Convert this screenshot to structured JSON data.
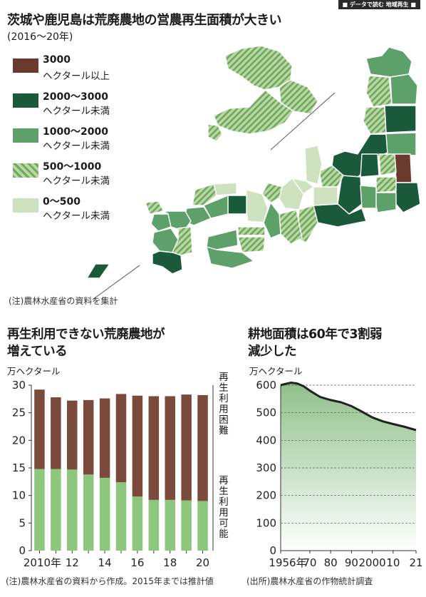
{
  "header": {
    "tag": "■ データで読む 地域再生 ■"
  },
  "map": {
    "title": "茨城や鹿児島は荒廃農地の営農再生面積が大きい",
    "subtitle": "(2016〜20年)",
    "note": "(注)農林水産省の資料を集計",
    "colors": {
      "c3000": "#6b3a2e",
      "c2000": "#1a5a3a",
      "c1000": "#5ea06a",
      "c500_base": "#b9d8a4",
      "c500_stripe": "#6fa85e",
      "c0": "#cfe2bf"
    },
    "legend": [
      {
        "range": "3000",
        "unit": "ヘクタール以上",
        "swatch": "c3000"
      },
      {
        "range": "2000〜3000",
        "unit": "ヘクタール未満",
        "swatch": "c2000"
      },
      {
        "range": "1000〜2000",
        "unit": "ヘクタール未満",
        "swatch": "c1000"
      },
      {
        "range": "500〜1000",
        "unit": "ヘクタール未満",
        "swatch": "c500"
      },
      {
        "range": "0〜500",
        "unit": "ヘクタール未満",
        "swatch": "c0"
      }
    ]
  },
  "chart_data": [
    {
      "type": "bar",
      "stacked": true,
      "title_lines": [
        "再生利用できない荒廃農地が",
        "増えている"
      ],
      "ylabel": "万ヘクタール",
      "ylim": [
        0,
        30
      ],
      "yticks": [
        0,
        5,
        10,
        15,
        20,
        25,
        30
      ],
      "categories": [
        "2010",
        "2011",
        "2012",
        "2013",
        "2014",
        "2015",
        "2016",
        "2017",
        "2018",
        "2019",
        "2020"
      ],
      "xtick_labels": [
        "2010年",
        "",
        "12",
        "",
        "14",
        "",
        "16",
        "",
        "18",
        "",
        "20"
      ],
      "series": [
        {
          "name": "再生利用可能",
          "color": "#8dc77e",
          "values": [
            14.8,
            14.8,
            14.7,
            13.8,
            13.2,
            12.4,
            9.8,
            9.2,
            9.2,
            9.1,
            9.0
          ]
        },
        {
          "name": "再生利用困難",
          "color": "#7a4a3c",
          "values": [
            14.4,
            13.0,
            12.5,
            13.5,
            14.4,
            16.0,
            18.3,
            18.8,
            18.8,
            19.2,
            19.2
          ]
        }
      ],
      "grid": false,
      "note": "(注)農林水産省の資料から作成。2015年までは推計値"
    },
    {
      "type": "area",
      "title_lines": [
        "耕地面積は60年で3割弱",
        "減少した"
      ],
      "ylabel": "万ヘクタール",
      "ylim": [
        0,
        600
      ],
      "yticks": [
        0,
        100,
        200,
        300,
        400,
        500,
        600
      ],
      "x": [
        1956,
        1958,
        1961,
        1964,
        1967,
        1970,
        1975,
        1980,
        1985,
        1990,
        1995,
        2000,
        2005,
        2010,
        2015,
        2021
      ],
      "values": [
        600,
        604,
        609,
        606,
        596,
        580,
        557,
        546,
        538,
        524,
        504,
        483,
        469,
        459,
        450,
        437
      ],
      "xtick_values": [
        1956,
        1970,
        1980,
        1990,
        2000,
        2010,
        2021
      ],
      "xtick_labels": [
        "1956年",
        "70",
        "80",
        "90",
        "2000",
        "10",
        "21"
      ],
      "grid": true,
      "note": "(出所)農林水産省の作物統計調査"
    }
  ]
}
